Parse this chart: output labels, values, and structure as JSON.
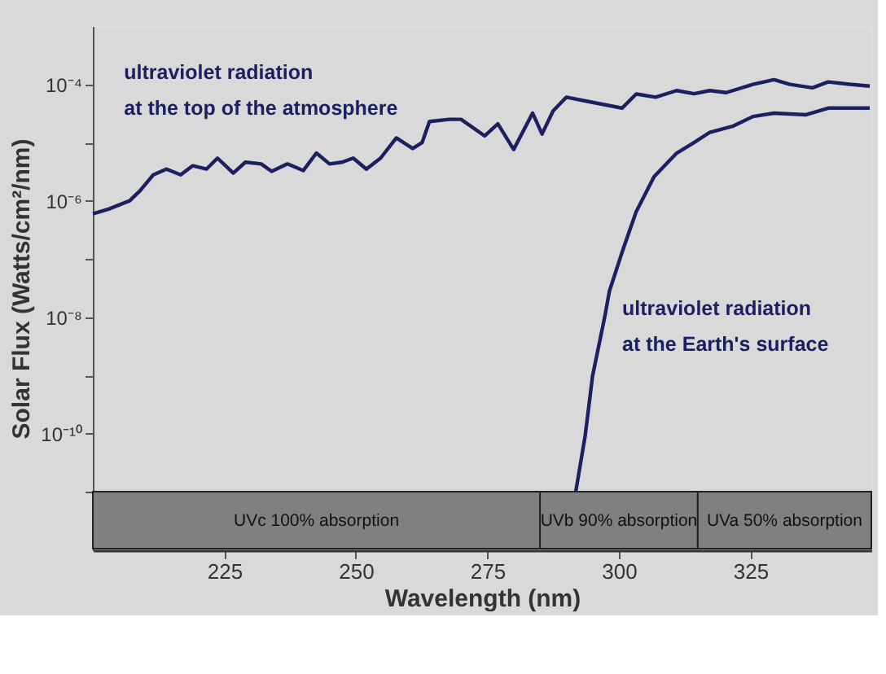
{
  "chart_data": {
    "type": "line",
    "xlabel": "Wavelength (nm)",
    "ylabel": "Solar Flux (Watts/cm²/nm)",
    "log": "y",
    "line_style": "solid",
    "marker": "none",
    "xlim": [
      200,
      348
    ],
    "xticks": [
      225,
      250,
      275,
      300,
      325
    ],
    "ylim": [
      1e-12,
      0.001
    ],
    "yticks": [
      {
        "value": 1e-11,
        "label": null
      },
      {
        "value": 1e-10,
        "label": "10⁻¹⁰"
      },
      {
        "value": 1e-09,
        "label": null
      },
      {
        "value": 1e-08,
        "label": "10⁻⁸"
      },
      {
        "value": 1e-07,
        "label": null
      },
      {
        "value": 1e-06,
        "label": "10⁻⁶"
      },
      {
        "value": 1e-05,
        "label": null
      },
      {
        "value": 0.0001,
        "label": "10⁻⁴"
      }
    ],
    "series": [
      {
        "color": "#1c2060",
        "x": [
          200,
          203,
          207,
          209,
          211.5,
          214,
          216.7,
          219,
          221.6,
          223.7,
          226.7,
          229,
          232,
          234,
          237,
          240,
          242.5,
          245,
          247.4,
          249.5,
          252,
          254.7,
          257.7,
          260.8,
          262.6,
          264,
          267.8,
          270,
          274.5,
          277,
          280,
          283.6,
          285.4,
          287.5,
          290,
          295,
          300.6,
          303.3,
          307,
          311,
          314.3,
          317.3,
          320.4,
          325.5,
          329.5,
          332.5,
          336.8,
          339.8,
          343.8,
          347.7
        ],
        "values": [
          6e-07,
          7.2e-07,
          1e-06,
          1.5e-06,
          2.8e-06,
          3.5e-06,
          2.8e-06,
          4e-06,
          3.5e-06,
          5.4e-06,
          3e-06,
          4.6e-06,
          4.3e-06,
          3.2e-06,
          4.3e-06,
          3.3e-06,
          6.6e-06,
          4.3e-06,
          4.6e-06,
          5.4e-06,
          3.5e-06,
          5.4e-06,
          1.2e-05,
          7.9e-06,
          1e-05,
          2.3e-05,
          2.5e-05,
          2.5e-05,
          1.3e-05,
          2.1e-05,
          7.6e-06,
          3.2e-05,
          1.4e-05,
          3.5e-05,
          6e-05,
          4.9e-05,
          3.9e-05,
          6.8e-05,
          6e-05,
          7.8e-05,
          6.9e-05,
          7.8e-05,
          7.2e-05,
          0.0001,
          0.00012,
          0.0001,
          8.7e-05,
          0.00011,
          0.0001,
          9.3e-05
        ]
      },
      {
        "color": "#1c2060",
        "x": [
          291.8,
          293.6,
          295,
          297.3,
          298.2,
          300.6,
          303.3,
          306.7,
          311,
          314.3,
          317.3,
          321.6,
          325.5,
          329.5,
          335.6,
          339.8,
          343.8,
          347.7
        ],
        "values": [
          1e-11,
          9.3e-11,
          9.8e-10,
          1e-08,
          2.8e-08,
          1.3e-07,
          6.5e-07,
          2.6e-06,
          6.6e-06,
          1e-05,
          1.5e-05,
          1.9e-05,
          2.8e-05,
          3.2e-05,
          3e-05,
          3.9e-05,
          3.9e-05,
          3.9e-05
        ]
      }
    ],
    "bands": [
      {
        "axis": "x",
        "from": 200,
        "to": 285,
        "label": "UVc 100% absorption",
        "color": "#808080"
      },
      {
        "axis": "x",
        "from": 285,
        "to": 315,
        "label": "UVb 90% absorption",
        "color": "#808080"
      },
      {
        "axis": "x",
        "from": 315,
        "to": 348,
        "label": "UVa 50% absorption",
        "color": "#808080"
      }
    ],
    "annotations": [
      "ultraviolet radiation\nat the top of the atmosphere",
      "ultraviolet radiation\nat the Earth's surface"
    ]
  }
}
